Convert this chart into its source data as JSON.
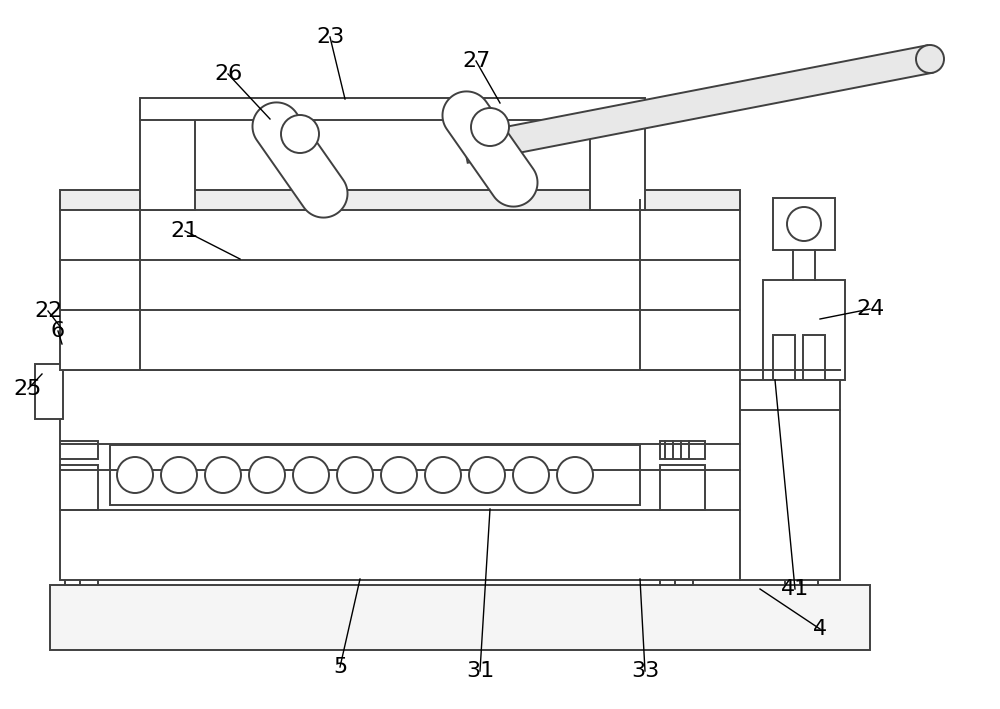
{
  "bg_color": "#ffffff",
  "line_color": "#404040",
  "line_width": 1.4,
  "fig_width": 10.0,
  "fig_height": 7.09,
  "dpi": 100
}
